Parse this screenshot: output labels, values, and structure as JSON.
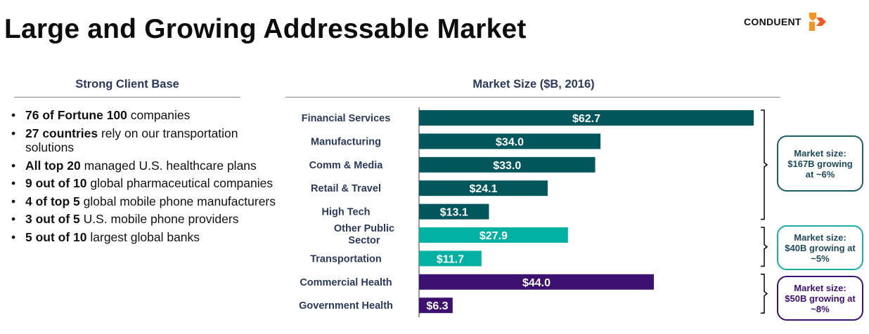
{
  "page": {
    "title": "Large and Growing Addressable Market",
    "logo_text": "CONDUENT",
    "left_heading": "Strong Client Base",
    "right_heading": "Market Size ($B, 2016)"
  },
  "bullets": [
    {
      "bold": "76 of Fortune 100",
      "rest": " companies"
    },
    {
      "bold": "27 countries",
      "rest": " rely on our transportation solutions"
    },
    {
      "bold": "All top 20",
      "rest": " managed U.S. healthcare plans"
    },
    {
      "bold": "9 out of 10",
      "rest": " global pharmaceutical companies"
    },
    {
      "bold": "4 of top 5",
      "rest": " global mobile phone manufacturers"
    },
    {
      "bold": "3 out of 5",
      "rest": " U.S. mobile phone providers"
    },
    {
      "bold": "5 out of 10",
      "rest": " largest global banks"
    }
  ],
  "chart_data": {
    "type": "bar",
    "orientation": "horizontal",
    "title": "Market Size ($B, 2016)",
    "categories": [
      "Financial Services",
      "Manufacturing",
      "Comm & Media",
      "Retail & Travel",
      "High Tech",
      "Other Public Sector",
      "Transportation",
      "Commercial Health",
      "Government Health"
    ],
    "values": [
      62.7,
      34.0,
      33.0,
      24.1,
      13.1,
      27.9,
      11.7,
      44.0,
      6.3
    ],
    "value_labels": [
      "$62.7",
      "$34.0",
      "$33.0",
      "$24.1",
      "$13.1",
      "$27.9",
      "$11.7",
      "$44.0",
      "$6.3"
    ],
    "groups": [
      0,
      0,
      0,
      0,
      0,
      1,
      1,
      2,
      2
    ],
    "colors": [
      "#00575b",
      "#00b0a0",
      "#3d1170"
    ],
    "xlim": [
      0,
      62.7
    ],
    "callouts": [
      {
        "text": "Market size: $167B growing at ~6%"
      },
      {
        "text": "Market size: $40B growing at ~5%"
      },
      {
        "text": "Market size: $50B growing at ~8%"
      }
    ]
  }
}
